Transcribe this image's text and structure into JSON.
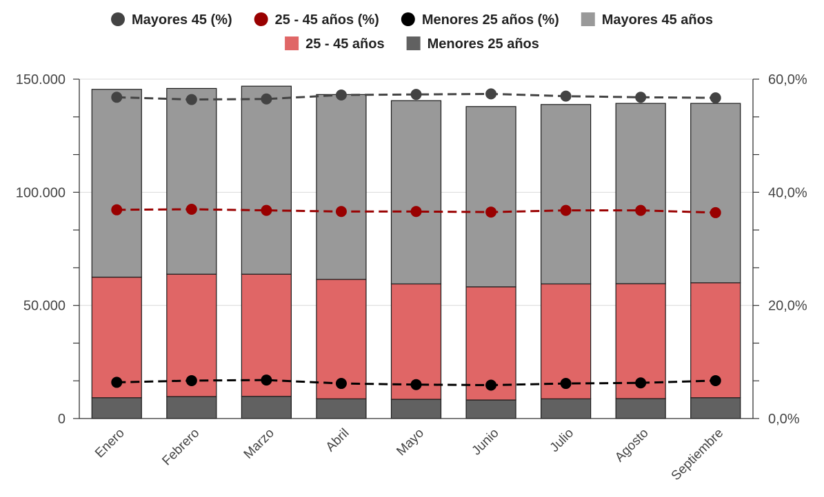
{
  "chart_data": {
    "type": "bar",
    "stacked": true,
    "categories": [
      "Enero",
      "Febrero",
      "Marzo",
      "Abril",
      "Mayo",
      "Junio",
      "Julio",
      "Agosto",
      "Septiembre"
    ],
    "series": [
      {
        "name": "Menores 25 años",
        "type": "bar",
        "axis": "left",
        "color": "#616161",
        "values": [
          9200,
          9700,
          9800,
          8700,
          8500,
          8200,
          8700,
          8800,
          9200
        ]
      },
      {
        "name": "25 - 45 años",
        "type": "bar",
        "axis": "left",
        "color": "#e06666",
        "values": [
          53300,
          54100,
          54000,
          52800,
          51000,
          50000,
          50800,
          50800,
          50800
        ]
      },
      {
        "name": "Mayores 45 años",
        "type": "bar",
        "axis": "left",
        "color": "#999999",
        "values": [
          83000,
          82100,
          83100,
          81700,
          81000,
          79700,
          79300,
          79700,
          79300
        ]
      },
      {
        "name": "Mayores 45 (%)",
        "type": "line",
        "axis": "right",
        "color": "#434343",
        "values": [
          56.8,
          56.4,
          56.5,
          57.2,
          57.3,
          57.4,
          57.0,
          56.8,
          56.7
        ]
      },
      {
        "name": "25 - 45 años (%)",
        "type": "line",
        "axis": "right",
        "color": "#990000",
        "values": [
          36.9,
          37.0,
          36.8,
          36.6,
          36.6,
          36.5,
          36.8,
          36.8,
          36.4
        ]
      },
      {
        "name": "Menores 25 años (%)",
        "type": "line",
        "axis": "right",
        "color": "#000000",
        "values": [
          6.4,
          6.7,
          6.8,
          6.2,
          6.0,
          5.9,
          6.2,
          6.3,
          6.7
        ]
      }
    ],
    "yaxis_left": {
      "ylim": [
        0,
        150000
      ],
      "ticks": [
        "0",
        "50.000",
        "100.000",
        "150.000"
      ]
    },
    "yaxis_right": {
      "ylim": [
        0,
        60
      ],
      "ticks": [
        "0,0%",
        "20,0%",
        "40,0%",
        "60,0%"
      ]
    },
    "legend": {
      "placement": "top",
      "items": [
        {
          "label": "Mayores 45 (%)",
          "marker": "circle",
          "color": "#434343"
        },
        {
          "label": "25 - 45 años (%)",
          "marker": "circle",
          "color": "#990000"
        },
        {
          "label": "Menores 25 años (%)",
          "marker": "circle",
          "color": "#000000"
        },
        {
          "label": "Mayores 45 años",
          "marker": "square",
          "color": "#999999"
        },
        {
          "label": "25 - 45 años",
          "marker": "square",
          "color": "#e06666"
        },
        {
          "label": "Menores 25 años",
          "marker": "square",
          "color": "#616161"
        }
      ]
    },
    "grid": true
  }
}
